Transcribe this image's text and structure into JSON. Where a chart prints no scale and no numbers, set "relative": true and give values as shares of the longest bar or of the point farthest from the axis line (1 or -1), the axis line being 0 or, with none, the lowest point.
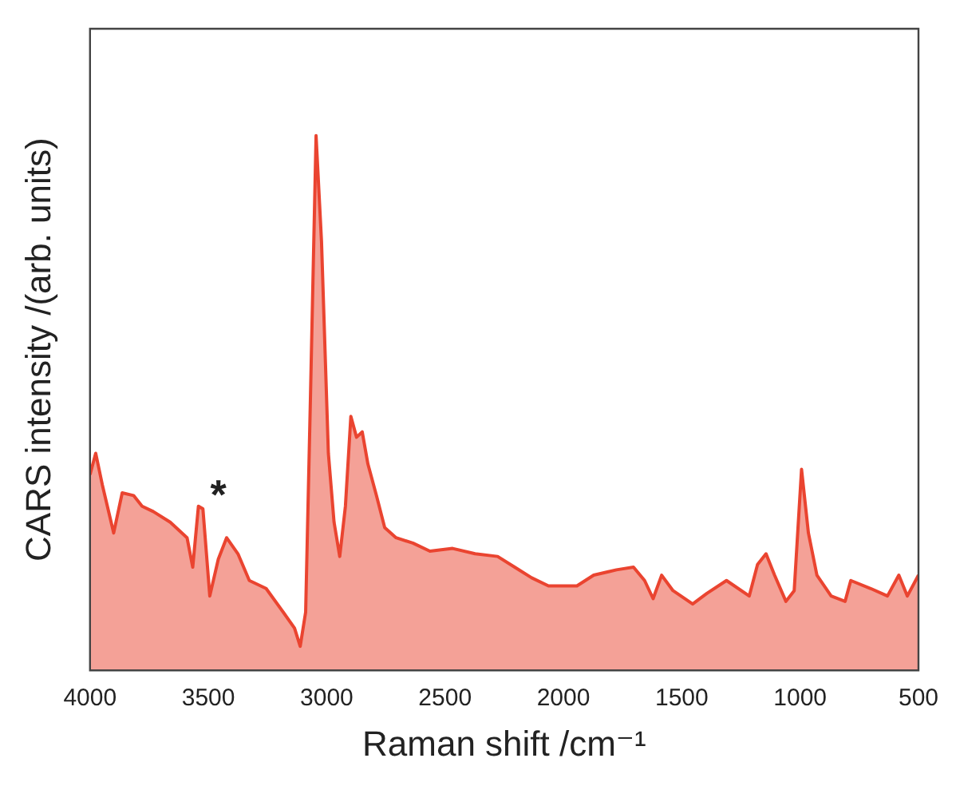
{
  "chart_data": {
    "type": "area",
    "relative": true,
    "xlabel": "Raman shift /cm⁻¹",
    "ylabel": "CARS intensity /(arb. units)",
    "xlim": [
      4000,
      500
    ],
    "xticks": [
      4000,
      3500,
      3000,
      2500,
      2000,
      1500,
      1000,
      500
    ],
    "grid": false,
    "legend": false,
    "annotations": [
      "*"
    ],
    "series": [
      {
        "color": "#ea4430",
        "x": [
          4000,
          3976,
          3948,
          3900,
          3864,
          3816,
          3780,
          3733,
          3661,
          3590,
          3566,
          3542,
          3523,
          3494,
          3458,
          3423,
          3375,
          3327,
          3256,
          3184,
          3136,
          3112,
          3089,
          3069,
          3045,
          3022,
          2993,
          2969,
          2945,
          2921,
          2898,
          2874,
          2850,
          2826,
          2790,
          2755,
          2707,
          2636,
          2564,
          2468,
          2373,
          2278,
          2206,
          2134,
          2063,
          1943,
          1872,
          1776,
          1704,
          1657,
          1621,
          1585,
          1537,
          1454,
          1394,
          1311,
          1215,
          1180,
          1144,
          1108,
          1060,
          1025,
          994,
          965,
          929,
          869,
          810,
          786,
          702,
          631,
          583,
          547,
          500
        ],
        "values": [
          0.366,
          0.406,
          0.347,
          0.257,
          0.332,
          0.327,
          0.307,
          0.297,
          0.277,
          0.248,
          0.193,
          0.307,
          0.302,
          0.139,
          0.208,
          0.248,
          0.218,
          0.168,
          0.153,
          0.109,
          0.079,
          0.045,
          0.109,
          0.505,
          1.0,
          0.802,
          0.406,
          0.277,
          0.213,
          0.307,
          0.475,
          0.436,
          0.446,
          0.386,
          0.327,
          0.267,
          0.248,
          0.238,
          0.223,
          0.228,
          0.218,
          0.213,
          0.193,
          0.173,
          0.158,
          0.158,
          0.178,
          0.188,
          0.193,
          0.168,
          0.134,
          0.178,
          0.149,
          0.124,
          0.144,
          0.168,
          0.139,
          0.198,
          0.218,
          0.178,
          0.129,
          0.149,
          0.376,
          0.257,
          0.178,
          0.139,
          0.129,
          0.168,
          0.153,
          0.139,
          0.178,
          0.139,
          0.178
        ]
      }
    ]
  }
}
